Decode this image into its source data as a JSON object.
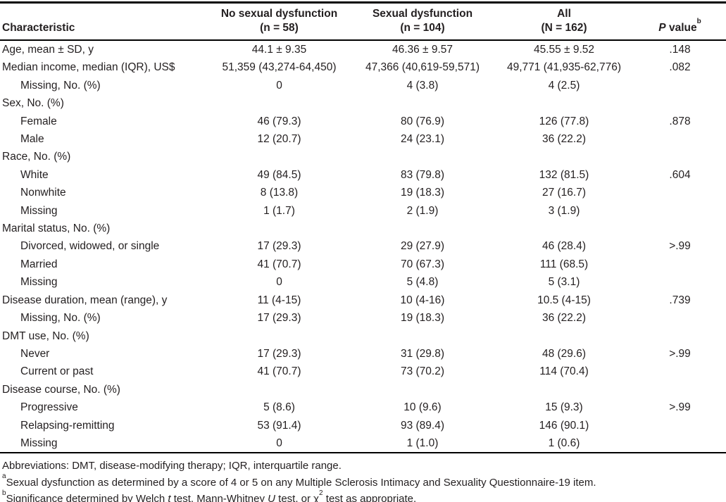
{
  "table": {
    "header": {
      "characteristic": "Characteristic",
      "no_sd_line1": "No sexual dysfunction",
      "no_sd_line2": "(n = 58)",
      "sd_line1": "Sexual dysfunction",
      "sd_line2": "(n = 104)",
      "all_line1": "All",
      "all_line2": "(N = 162)",
      "pvalue_italic": "P",
      "pvalue_rest": " value",
      "pvalue_sup": "b"
    },
    "rows": [
      {
        "label": "Age, mean ± SD, y",
        "indent": 0,
        "no_sd": "44.1 ± 9.35",
        "sd": "46.36 ± 9.57",
        "all": "45.55 ± 9.52",
        "p": ".148"
      },
      {
        "label": "Median income, median (IQR), US$",
        "indent": 0,
        "no_sd": "51,359 (43,274-64,450)",
        "sd": "47,366 (40,619-59,571)",
        "all": "49,771 (41,935-62,776)",
        "p": ".082"
      },
      {
        "label": "Missing, No. (%)",
        "indent": 1,
        "no_sd": "0",
        "sd": "4 (3.8)",
        "all": "4 (2.5)",
        "p": ""
      },
      {
        "label": "Sex, No. (%)",
        "indent": 0,
        "no_sd": "",
        "sd": "",
        "all": "",
        "p": ""
      },
      {
        "label": "Female",
        "indent": 1,
        "no_sd": "46 (79.3)",
        "sd": "80 (76.9)",
        "all": "126 (77.8)",
        "p": ".878"
      },
      {
        "label": "Male",
        "indent": 1,
        "no_sd": "12 (20.7)",
        "sd": "24 (23.1)",
        "all": "36 (22.2)",
        "p": ""
      },
      {
        "label": "Race, No. (%)",
        "indent": 0,
        "no_sd": "",
        "sd": "",
        "all": "",
        "p": ""
      },
      {
        "label": "White",
        "indent": 1,
        "no_sd": "49 (84.5)",
        "sd": "83 (79.8)",
        "all": "132 (81.5)",
        "p": ".604"
      },
      {
        "label": "Nonwhite",
        "indent": 1,
        "no_sd": "8 (13.8)",
        "sd": "19 (18.3)",
        "all": "27 (16.7)",
        "p": ""
      },
      {
        "label": "Missing",
        "indent": 1,
        "no_sd": "1 (1.7)",
        "sd": "2 (1.9)",
        "all": "3 (1.9)",
        "p": ""
      },
      {
        "label": "Marital status, No. (%)",
        "indent": 0,
        "no_sd": "",
        "sd": "",
        "all": "",
        "p": ""
      },
      {
        "label": "Divorced, widowed, or single",
        "indent": 1,
        "no_sd": "17 (29.3)",
        "sd": "29 (27.9)",
        "all": "46 (28.4)",
        "p": ">.99"
      },
      {
        "label": "Married",
        "indent": 1,
        "no_sd": "41 (70.7)",
        "sd": "70 (67.3)",
        "all": "111 (68.5)",
        "p": ""
      },
      {
        "label": "Missing",
        "indent": 1,
        "no_sd": "0",
        "sd": "5 (4.8)",
        "all": "5 (3.1)",
        "p": ""
      },
      {
        "label": "Disease duration, mean (range), y",
        "indent": 0,
        "no_sd": "11 (4-15)",
        "sd": "10 (4-16)",
        "all": "10.5 (4-15)",
        "p": ".739"
      },
      {
        "label": "Missing, No. (%)",
        "indent": 1,
        "no_sd": "17 (29.3)",
        "sd": "19 (18.3)",
        "all": "36 (22.2)",
        "p": ""
      },
      {
        "label": "DMT use, No. (%)",
        "indent": 0,
        "no_sd": "",
        "sd": "",
        "all": "",
        "p": ""
      },
      {
        "label": "Never",
        "indent": 1,
        "no_sd": "17 (29.3)",
        "sd": "31 (29.8)",
        "all": "48 (29.6)",
        "p": ">.99"
      },
      {
        "label": "Current or past",
        "indent": 1,
        "no_sd": "41 (70.7)",
        "sd": "73 (70.2)",
        "all": "114 (70.4)",
        "p": ""
      },
      {
        "label": "Disease course, No. (%)",
        "indent": 0,
        "no_sd": "",
        "sd": "",
        "all": "",
        "p": ""
      },
      {
        "label": "Progressive",
        "indent": 1,
        "no_sd": "5 (8.6)",
        "sd": "10 (9.6)",
        "all": "15 (9.3)",
        "p": ">.99"
      },
      {
        "label": "Relapsing-remitting",
        "indent": 1,
        "no_sd": "53 (91.4)",
        "sd": "93 (89.4)",
        "all": "146 (90.1)",
        "p": ""
      },
      {
        "label": "Missing",
        "indent": 1,
        "no_sd": "0",
        "sd": "1 (1.0)",
        "all": "1 (0.6)",
        "p": ""
      }
    ]
  },
  "footnotes": {
    "abbreviations": "Abbreviations: DMT, disease-modifying therapy; IQR, interquartile range.",
    "a": {
      "sup": "a",
      "text": "Sexual dysfunction as determined by a score of 4 or 5 on any Multiple Sclerosis Intimacy and Sexuality Questionnaire-19 item."
    },
    "b": {
      "sup": "b",
      "parts": [
        "Significance determined by Welch ",
        "t",
        " test, Mann-Whitney ",
        "U",
        " test, or χ",
        "2",
        " test as appropriate."
      ]
    }
  }
}
